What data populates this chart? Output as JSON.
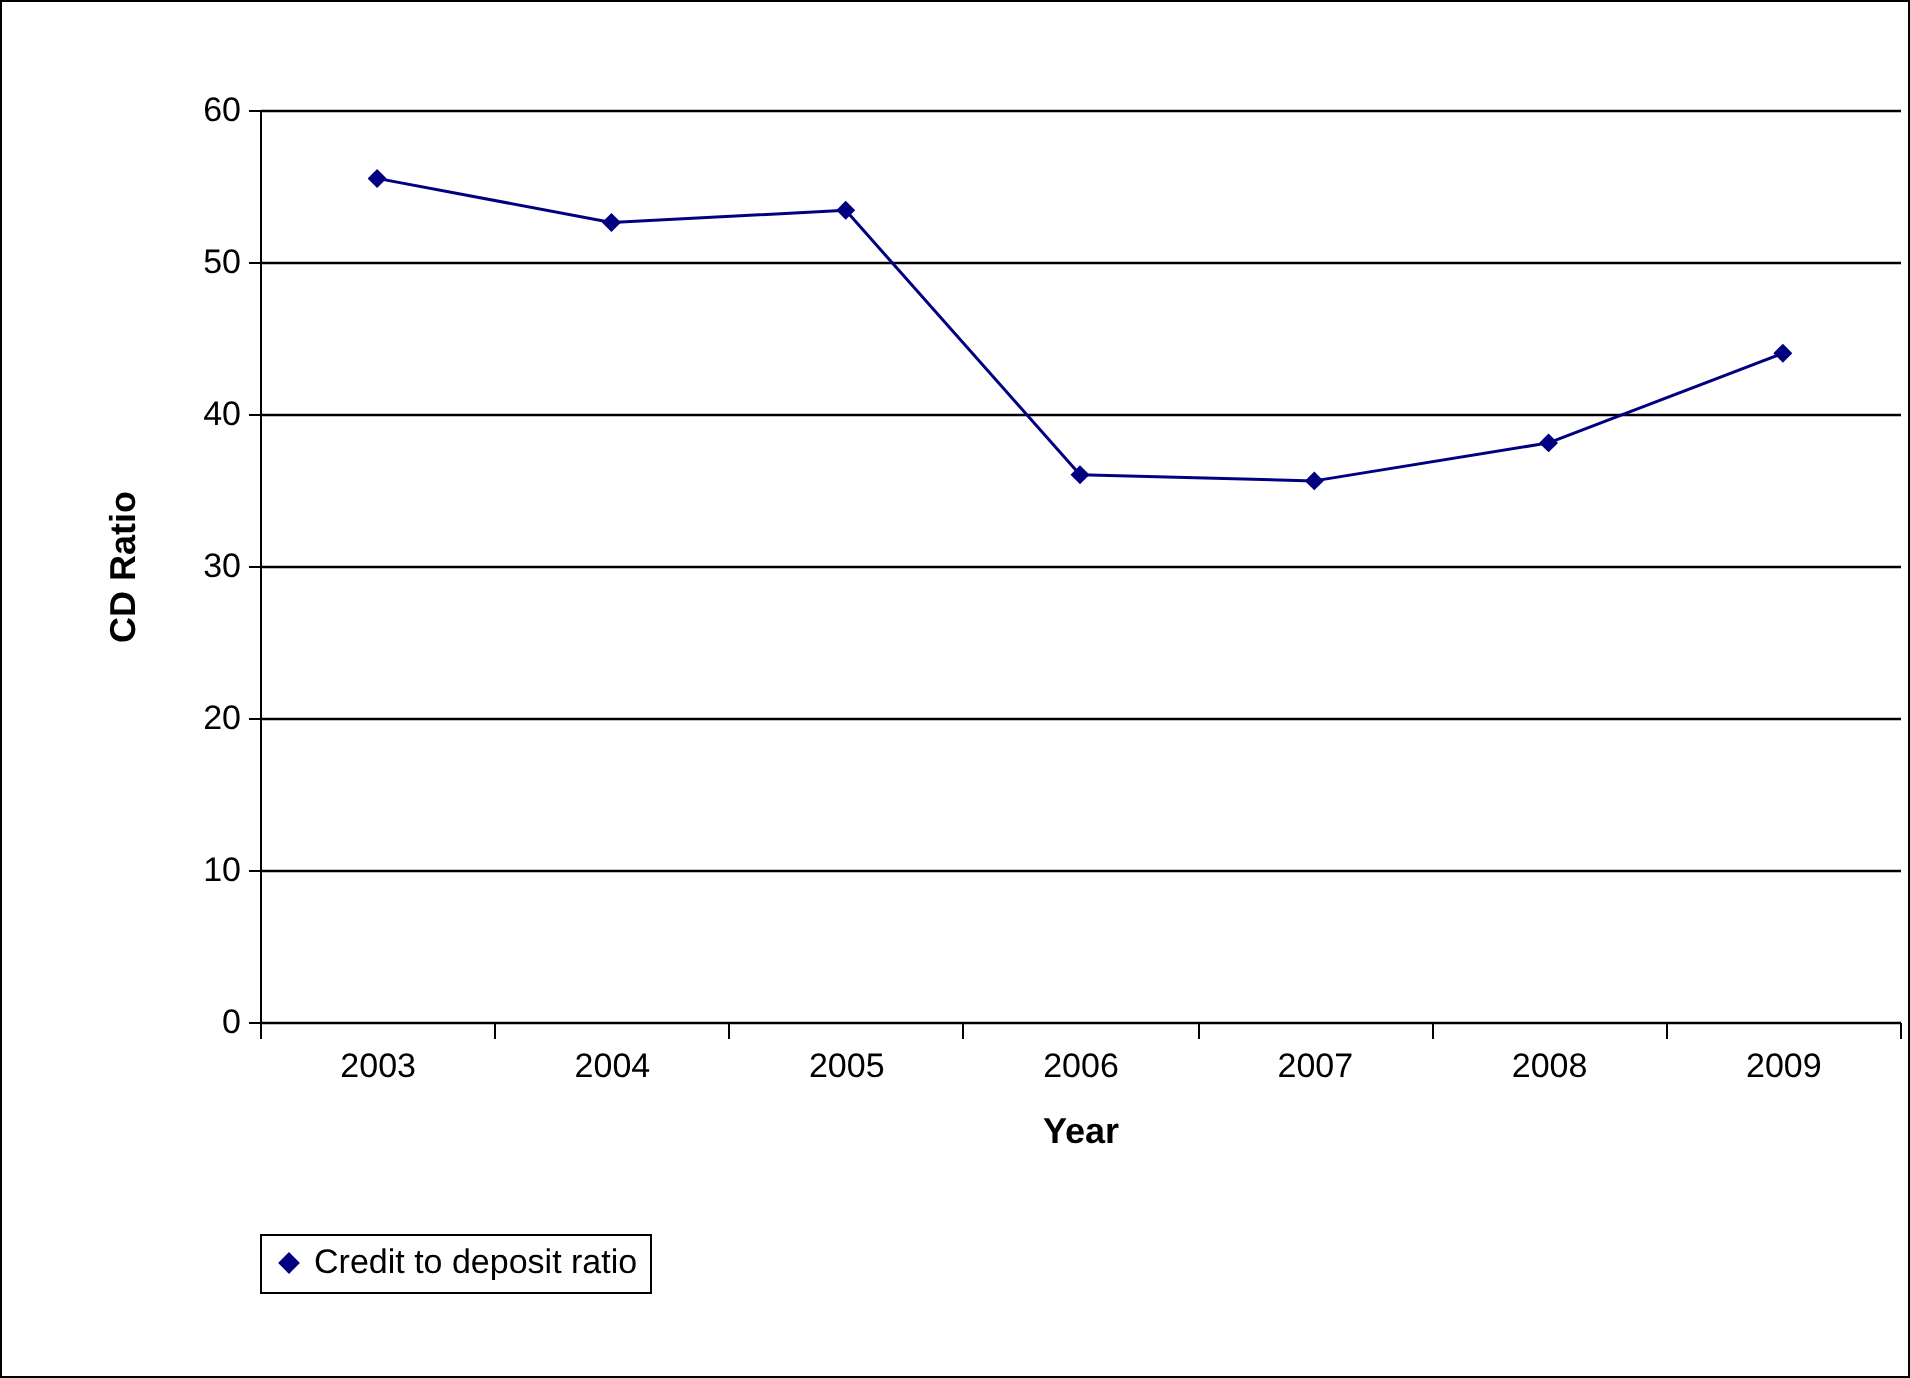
{
  "chart_data": {
    "type": "line",
    "xlabel": "Year",
    "ylabel": "CD Ratio",
    "categories": [
      "2003",
      "2004",
      "2005",
      "2006",
      "2007",
      "2008",
      "2009"
    ],
    "series": [
      {
        "name": "Credit to deposit ratio",
        "color": "#000080",
        "values": [
          55.5,
          52.6,
          53.4,
          36.0,
          35.6,
          38.1,
          44.0
        ]
      }
    ],
    "ylim": [
      0,
      60
    ],
    "yticks": [
      0,
      10,
      20,
      30,
      40,
      50,
      60
    ],
    "grid": "y",
    "legend": "bottom",
    "marker": "diamond",
    "line_style": "solid"
  }
}
